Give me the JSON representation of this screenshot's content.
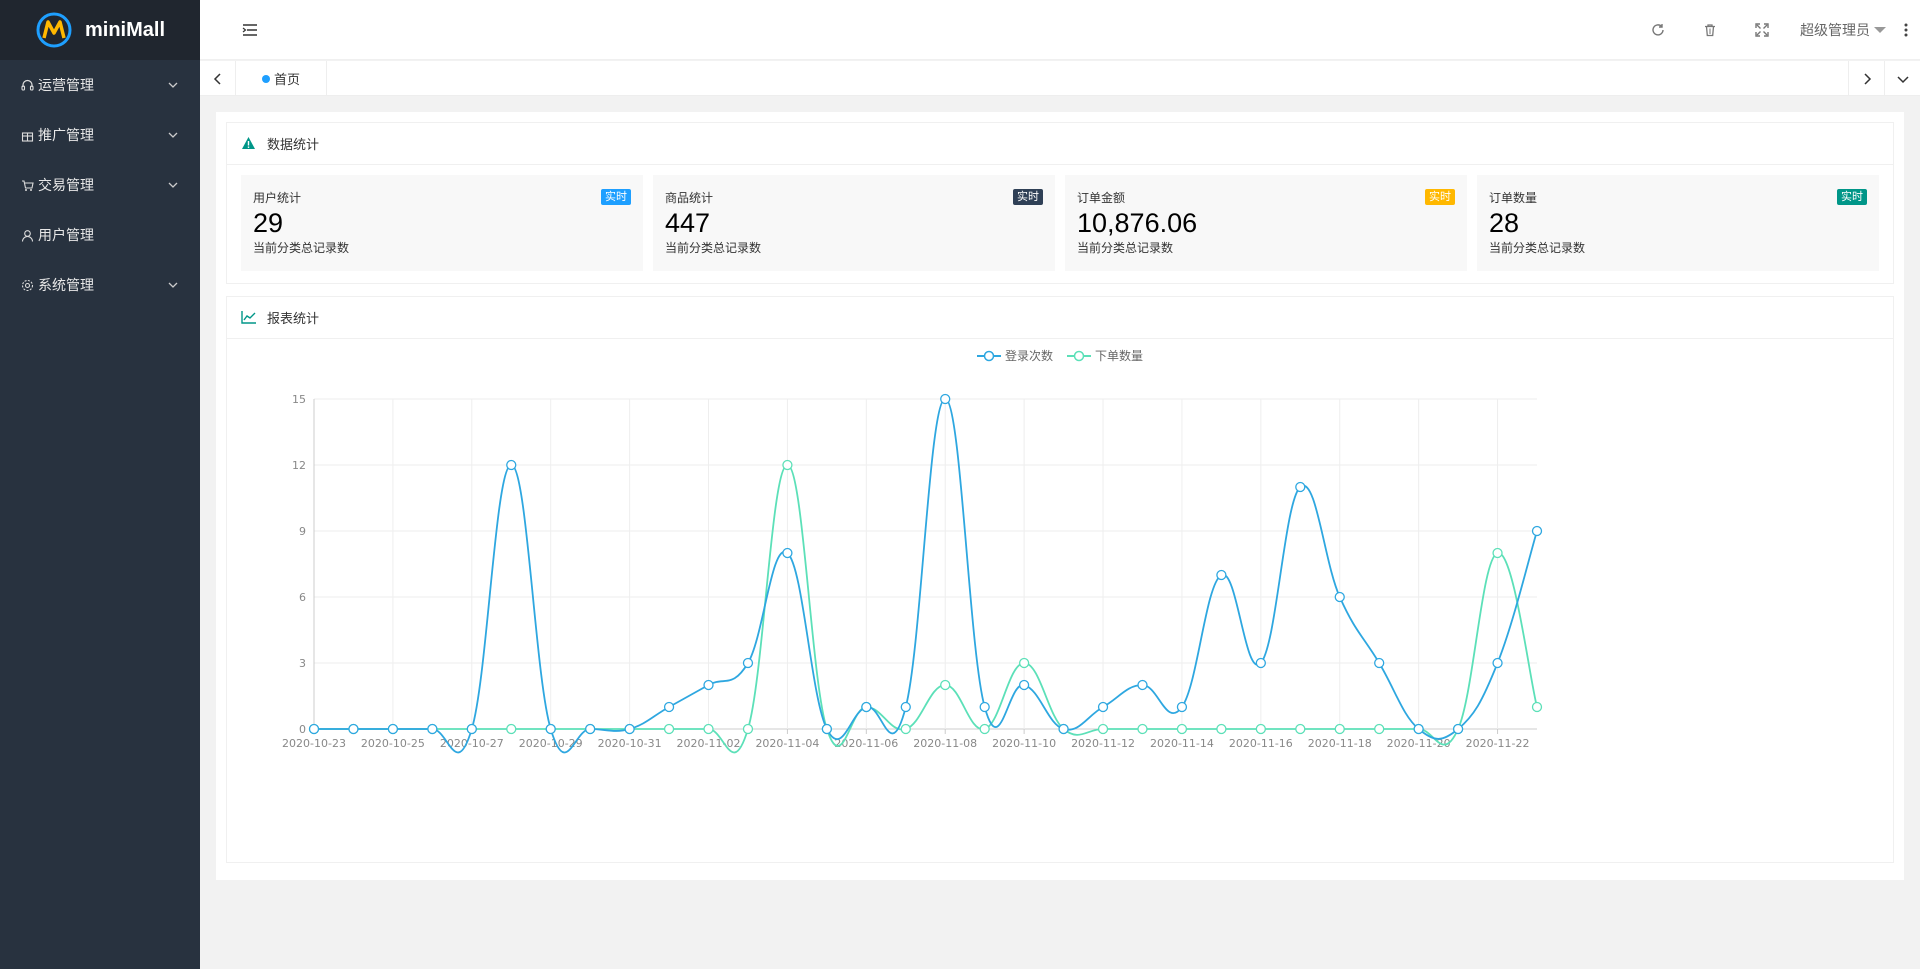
{
  "app": {
    "name": "miniMall"
  },
  "sidebar": {
    "items": [
      {
        "label": "运营管理",
        "icon": "headset-icon",
        "expandable": true
      },
      {
        "label": "推广管理",
        "icon": "gift-icon",
        "expandable": true
      },
      {
        "label": "交易管理",
        "icon": "cart-icon",
        "expandable": true
      },
      {
        "label": "用户管理",
        "icon": "user-icon",
        "expandable": false
      },
      {
        "label": "系统管理",
        "icon": "gear-icon",
        "expandable": true
      }
    ]
  },
  "header": {
    "user_name": "超级管理员"
  },
  "tabs": {
    "home_label": "首页"
  },
  "stats_panel": {
    "title": "数据统计",
    "cards": [
      {
        "label": "用户统计",
        "value": "29",
        "desc": "当前分类总记录数",
        "badge": "实时",
        "badge_color": "#1e9fff"
      },
      {
        "label": "商品统计",
        "value": "447",
        "desc": "当前分类总记录数",
        "badge": "实时",
        "badge_color": "#2f4056"
      },
      {
        "label": "订单金额",
        "value": "10,876.06",
        "desc": "当前分类总记录数",
        "badge": "实时",
        "badge_color": "#ffb800"
      },
      {
        "label": "订单数量",
        "value": "28",
        "desc": "当前分类总记录数",
        "badge": "实时",
        "badge_color": "#009688"
      }
    ]
  },
  "report_panel": {
    "title": "报表统计"
  },
  "chart_data": {
    "type": "line",
    "smooth": true,
    "legend_position": "top-center",
    "grid": true,
    "x": [
      "2020-10-23",
      "2020-10-24",
      "2020-10-25",
      "2020-10-26",
      "2020-10-27",
      "2020-10-28",
      "2020-10-29",
      "2020-10-30",
      "2020-10-31",
      "2020-11-01",
      "2020-11-02",
      "2020-11-03",
      "2020-11-04",
      "2020-11-05",
      "2020-11-06",
      "2020-11-07",
      "2020-11-08",
      "2020-11-09",
      "2020-11-10",
      "2020-11-11",
      "2020-11-12",
      "2020-11-13",
      "2020-11-14",
      "2020-11-15",
      "2020-11-16",
      "2020-11-17",
      "2020-11-18",
      "2020-11-19",
      "2020-11-20",
      "2020-11-21",
      "2020-11-22",
      "2020-11-23"
    ],
    "x_tick_labels": [
      "2020-10-23",
      "2020-10-25",
      "2020-10-27",
      "2020-10-29",
      "2020-10-31",
      "2020-11-02",
      "2020-11-04",
      "2020-11-06",
      "2020-11-08",
      "2020-11-10",
      "2020-11-12",
      "2020-11-14",
      "2020-11-16",
      "2020-11-18",
      "2020-11-20",
      "2020-11-22"
    ],
    "y_ticks": [
      "0",
      "3",
      "6",
      "9",
      "12",
      "15"
    ],
    "ylim": [
      0,
      15
    ],
    "series": [
      {
        "name": "登录次数",
        "color": "#2ea7e0",
        "values": [
          0,
          0,
          0,
          0,
          0,
          12,
          0,
          0,
          0,
          1,
          2,
          3,
          8,
          0,
          1,
          1,
          15,
          1,
          2,
          0,
          1,
          2,
          1,
          7,
          3,
          11,
          6,
          3,
          0,
          0,
          3,
          9
        ]
      },
      {
        "name": "下单数量",
        "color": "#5ce0b8",
        "values": [
          0,
          0,
          0,
          0,
          0,
          0,
          0,
          0,
          0,
          0,
          0,
          0,
          12,
          0,
          1,
          0,
          2,
          0,
          3,
          0,
          0,
          0,
          0,
          0,
          0,
          0,
          0,
          0,
          0,
          0,
          8,
          1
        ]
      }
    ]
  }
}
